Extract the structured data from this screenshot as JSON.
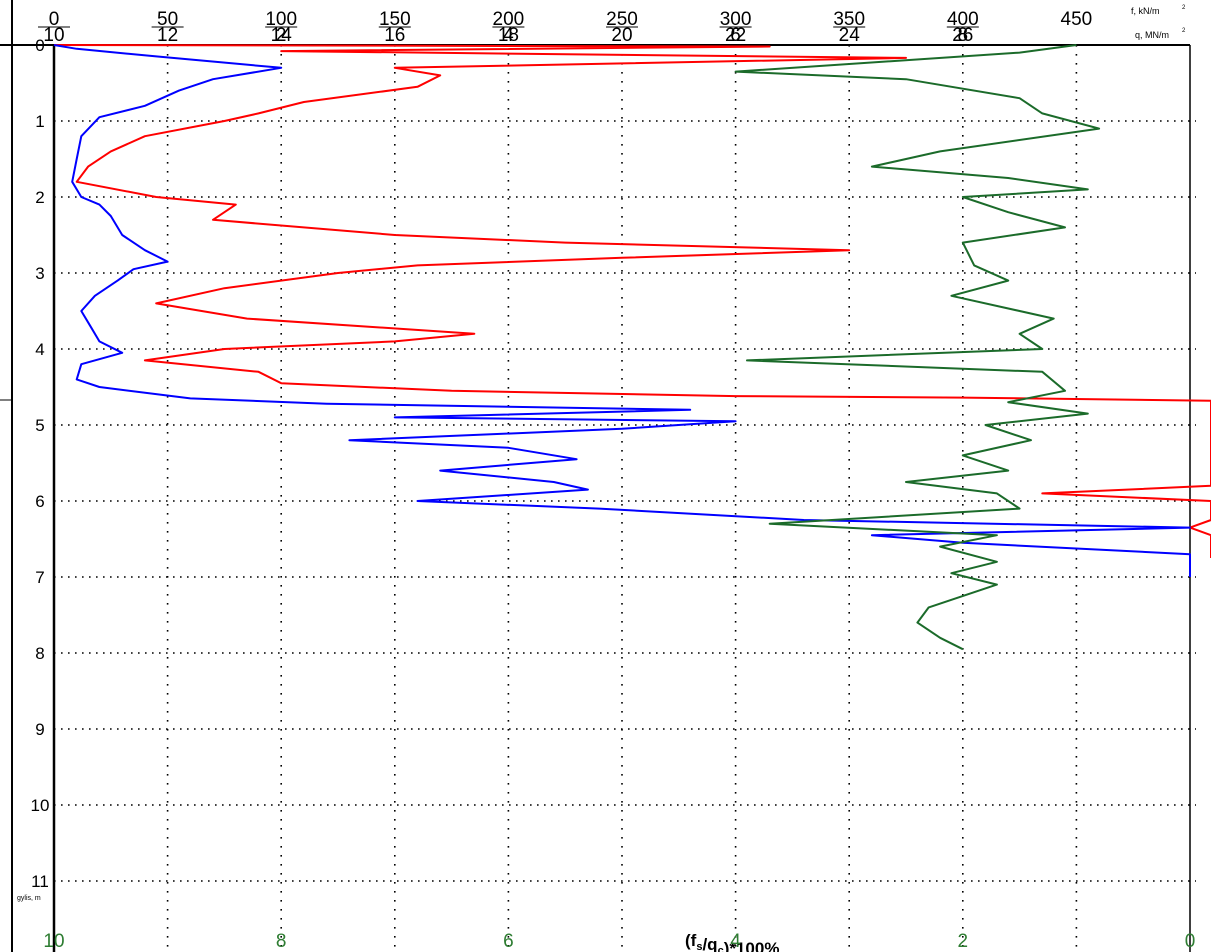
{
  "chart_data": {
    "type": "line",
    "title": "",
    "ylabel": "gylis, m",
    "ylim": [
      0,
      11.8
    ],
    "y_ticks": [
      0,
      1,
      2,
      3,
      4,
      5,
      6,
      7,
      8,
      9,
      10,
      11
    ],
    "grid": true,
    "axes": {
      "f": {
        "label": "f, kN/m",
        "superscript": "2",
        "ticks": [
          0,
          50,
          100,
          150,
          200,
          250,
          300,
          350,
          400,
          450
        ],
        "range": [
          0,
          500
        ]
      },
      "q": {
        "label": "q, MN/m",
        "superscript": "2",
        "ticks": [
          10,
          12,
          14,
          16,
          18,
          20,
          22,
          24,
          26
        ],
        "range": [
          10,
          30
        ]
      },
      "r": {
        "ticks_bottom": [
          2,
          4,
          6,
          8
        ],
        "range": [
          0,
          10
        ]
      },
      "ratio": {
        "label": "(f",
        "label_sub1": "s",
        "label_mid": "/q",
        "label_sub2": "c",
        "label_end": ")*100%",
        "ticks": [
          10,
          8,
          6,
          4,
          2,
          0
        ],
        "range": [
          10,
          0
        ]
      }
    },
    "series": [
      {
        "color": "#ff0000",
        "axis": "r",
        "points": [
          [
            0,
            0
          ],
          [
            6.3,
            0.02
          ],
          [
            2.0,
            0.08
          ],
          [
            7.5,
            0.17
          ],
          [
            3.0,
            0.3
          ],
          [
            3.4,
            0.4
          ],
          [
            3.2,
            0.55
          ],
          [
            2.2,
            0.75
          ],
          [
            1.8,
            0.9
          ],
          [
            1.5,
            1.0
          ],
          [
            0.8,
            1.2
          ],
          [
            0.5,
            1.4
          ],
          [
            0.3,
            1.6
          ],
          [
            0.2,
            1.8
          ],
          [
            0.9,
            2.0
          ],
          [
            1.6,
            2.1
          ],
          [
            1.4,
            2.3
          ],
          [
            3.0,
            2.5
          ],
          [
            4.5,
            2.6
          ],
          [
            7.0,
            2.7
          ],
          [
            5.0,
            2.8
          ],
          [
            3.2,
            2.9
          ],
          [
            2.5,
            3.0
          ],
          [
            1.5,
            3.2
          ],
          [
            0.9,
            3.4
          ],
          [
            1.7,
            3.6
          ],
          [
            3.7,
            3.8
          ],
          [
            3.0,
            3.9
          ],
          [
            1.5,
            4.0
          ],
          [
            0.8,
            4.15
          ],
          [
            1.8,
            4.3
          ],
          [
            2.0,
            4.45
          ],
          [
            3.5,
            4.55
          ],
          [
            6.0,
            4.62
          ],
          [
            8.0,
            4.64
          ],
          [
            25.0,
            4.68
          ],
          [
            27.0,
            4.73
          ],
          [
            29.0,
            4.8
          ],
          [
            29.5,
            4.85
          ],
          [
            28.0,
            4.88
          ],
          [
            18.0,
            4.95
          ],
          [
            23.0,
            5.02
          ],
          [
            24.0,
            5.1
          ],
          [
            26.0,
            5.18
          ],
          [
            22.0,
            5.3
          ],
          [
            19.0,
            5.45
          ],
          [
            17.5,
            5.55
          ],
          [
            11.0,
            5.7
          ],
          [
            13.0,
            5.8
          ],
          [
            8.7,
            5.9
          ],
          [
            13.0,
            6.0
          ],
          [
            17.0,
            6.05
          ],
          [
            19.0,
            6.15
          ],
          [
            19.8,
            6.25
          ],
          [
            10.0,
            6.35
          ],
          [
            17.0,
            6.45
          ],
          [
            19.0,
            6.5
          ],
          [
            16.0,
            6.57
          ],
          [
            20.2,
            6.6
          ],
          [
            20.5,
            6.7
          ],
          [
            29.9,
            6.75
          ]
        ]
      },
      {
        "color": "#0000ff",
        "axis": "f",
        "points": [
          [
            0,
            0
          ],
          [
            10,
            0.05
          ],
          [
            45,
            0.15
          ],
          [
            100,
            0.3
          ],
          [
            70,
            0.45
          ],
          [
            55,
            0.6
          ],
          [
            40,
            0.8
          ],
          [
            20,
            0.95
          ],
          [
            12,
            1.2
          ],
          [
            10,
            1.5
          ],
          [
            8,
            1.8
          ],
          [
            12,
            2.0
          ],
          [
            20,
            2.1
          ],
          [
            25,
            2.25
          ],
          [
            30,
            2.5
          ],
          [
            40,
            2.7
          ],
          [
            50,
            2.85
          ],
          [
            35,
            2.95
          ],
          [
            28,
            3.1
          ],
          [
            18,
            3.3
          ],
          [
            12,
            3.5
          ],
          [
            16,
            3.7
          ],
          [
            20,
            3.9
          ],
          [
            30,
            4.05
          ],
          [
            12,
            4.2
          ],
          [
            10,
            4.4
          ],
          [
            20,
            4.5
          ],
          [
            60,
            4.65
          ],
          [
            120,
            4.72
          ],
          [
            280,
            4.8
          ],
          [
            150,
            4.9
          ],
          [
            300,
            4.95
          ],
          [
            250,
            5.05
          ],
          [
            130,
            5.2
          ],
          [
            200,
            5.3
          ],
          [
            230,
            5.45
          ],
          [
            170,
            5.6
          ],
          [
            220,
            5.75
          ],
          [
            235,
            5.85
          ],
          [
            160,
            6.0
          ],
          [
            240,
            6.1
          ],
          [
            330,
            6.25
          ],
          [
            500,
            6.35
          ],
          [
            360,
            6.45
          ],
          [
            400,
            6.55
          ],
          [
            500,
            6.7
          ],
          [
            500,
            7.0
          ]
        ]
      },
      {
        "color": "#1b6b2a",
        "axis": "ratio",
        "points": [
          [
            1.0,
            0
          ],
          [
            1.5,
            0.1
          ],
          [
            4.0,
            0.35
          ],
          [
            2.5,
            0.45
          ],
          [
            1.5,
            0.7
          ],
          [
            1.3,
            0.9
          ],
          [
            0.8,
            1.1
          ],
          [
            2.2,
            1.4
          ],
          [
            2.8,
            1.6
          ],
          [
            1.6,
            1.75
          ],
          [
            0.9,
            1.9
          ],
          [
            2.0,
            2.0
          ],
          [
            1.6,
            2.2
          ],
          [
            1.1,
            2.4
          ],
          [
            2.0,
            2.6
          ],
          [
            1.9,
            2.9
          ],
          [
            1.6,
            3.1
          ],
          [
            2.1,
            3.3
          ],
          [
            1.2,
            3.6
          ],
          [
            1.5,
            3.8
          ],
          [
            1.3,
            4.0
          ],
          [
            3.9,
            4.15
          ],
          [
            1.3,
            4.3
          ],
          [
            1.1,
            4.55
          ],
          [
            1.6,
            4.7
          ],
          [
            0.9,
            4.85
          ],
          [
            1.8,
            5.0
          ],
          [
            1.4,
            5.2
          ],
          [
            2.0,
            5.4
          ],
          [
            1.6,
            5.6
          ],
          [
            2.5,
            5.75
          ],
          [
            1.7,
            5.9
          ],
          [
            1.5,
            6.1
          ],
          [
            3.7,
            6.3
          ],
          [
            1.7,
            6.45
          ],
          [
            2.2,
            6.6
          ],
          [
            1.7,
            6.8
          ],
          [
            2.1,
            6.95
          ],
          [
            1.7,
            7.1
          ],
          [
            2.3,
            7.4
          ],
          [
            2.4,
            7.6
          ],
          [
            2.2,
            7.8
          ],
          [
            2.0,
            7.95
          ]
        ]
      }
    ]
  }
}
